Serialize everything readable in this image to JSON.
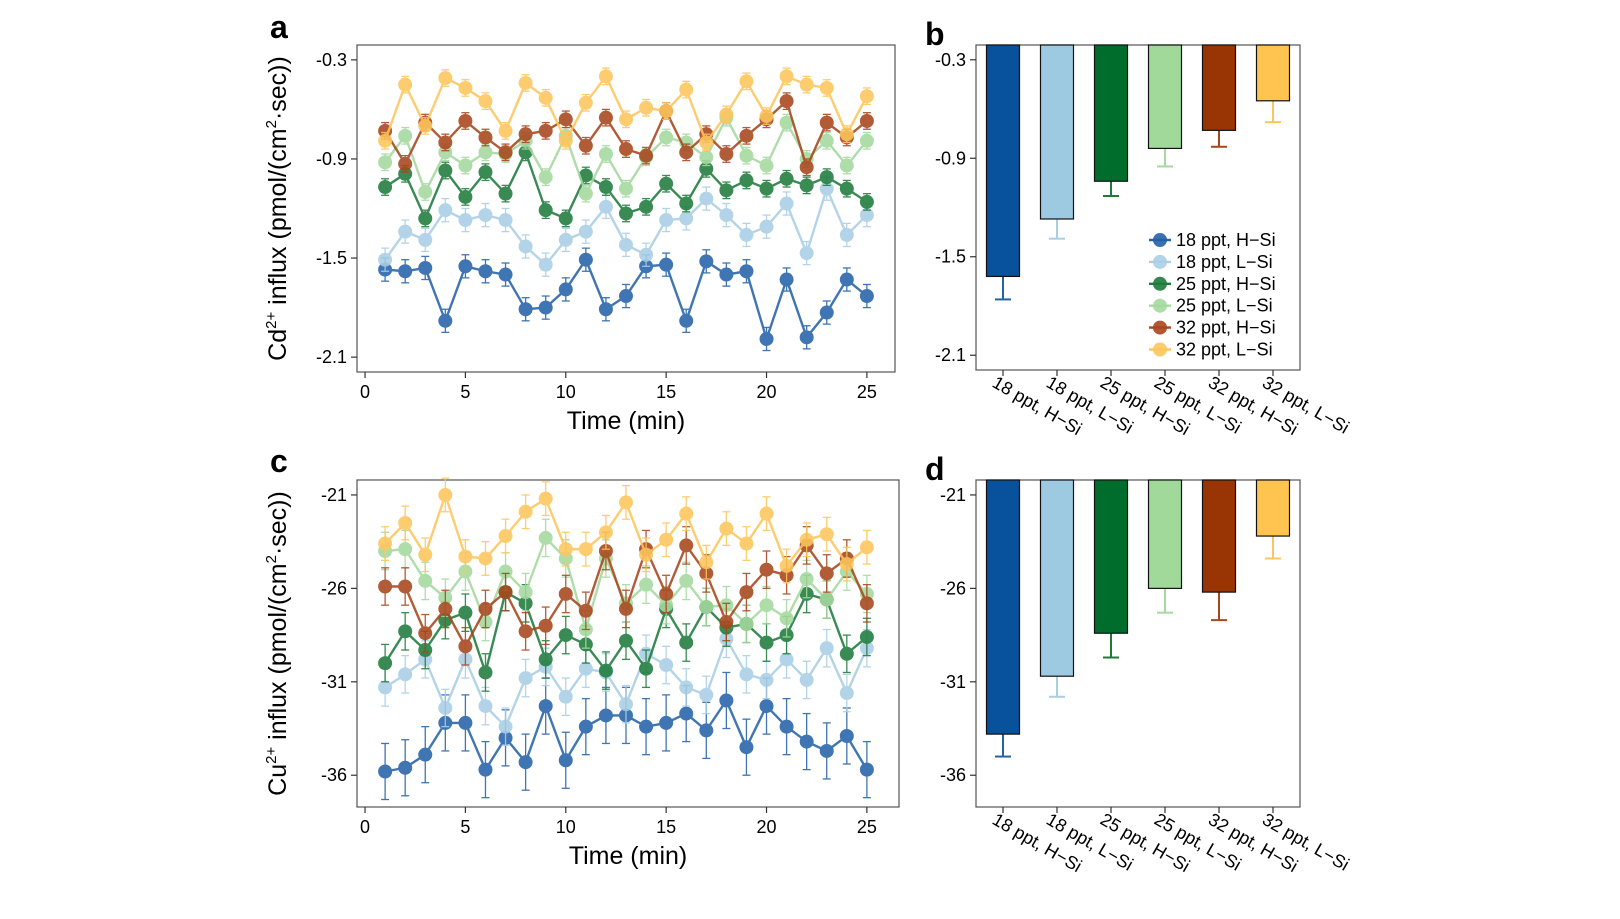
{
  "colors": {
    "18 ppt, H-Si": "#2562a8",
    "18 ppt, L-Si": "#a9cfe5",
    "25 ppt, H-Si": "#1e7b3c",
    "25 ppt, L-Si": "#a5d99e",
    "32 ppt, H-Si": "#a8461c",
    "32 ppt, L-Si": "#fdc65c",
    "bar_fills": [
      "#08519c",
      "#9ecae1",
      "#006d2c",
      "#a1d99b",
      "#993404",
      "#fec44f"
    ]
  },
  "legend": {
    "placement": "bottom-right of panel b",
    "entries": [
      "18 ppt, H−Si",
      "18 ppt, L−Si",
      "25 ppt, H−Si",
      "25 ppt, L−Si",
      "32 ppt, H−Si",
      "32 ppt, L−Si"
    ]
  },
  "chart_data": [
    {
      "panel": "a",
      "type": "line",
      "xlabel": "Time (min)",
      "ylabel": {
        "ion": "Cd",
        "charge": "2+",
        "mid": " influx (pmol/(cm",
        "sup": "2",
        "end": "·sec))"
      },
      "xlim": [
        -0.4,
        26.4
      ],
      "ylim": [
        -2.19,
        -0.21
      ],
      "xticks": [
        0,
        5,
        10,
        15,
        20,
        25
      ],
      "yticks": [
        -0.3,
        -0.9,
        -1.5,
        -2.1
      ],
      "ytick_labels": [
        "-0.3",
        "-0.9",
        "-1.5",
        "-2.1"
      ],
      "x": [
        1,
        2,
        3,
        4,
        5,
        6,
        7,
        8,
        9,
        10,
        11,
        12,
        13,
        14,
        15,
        16,
        17,
        18,
        19,
        20,
        21,
        22,
        23,
        24,
        25
      ],
      "series": [
        {
          "name": "18 ppt, H-Si",
          "err": 0.07,
          "values": [
            -1.57,
            -1.58,
            -1.56,
            -1.88,
            -1.55,
            -1.58,
            -1.6,
            -1.81,
            -1.8,
            -1.69,
            -1.51,
            -1.81,
            -1.73,
            -1.55,
            -1.54,
            -1.88,
            -1.52,
            -1.6,
            -1.58,
            -1.99,
            -1.63,
            -1.98,
            -1.83,
            -1.63,
            -1.73
          ]
        },
        {
          "name": "18 ppt, L-Si",
          "err": 0.07,
          "values": [
            -1.51,
            -1.34,
            -1.39,
            -1.21,
            -1.27,
            -1.24,
            -1.27,
            -1.43,
            -1.54,
            -1.39,
            -1.34,
            -1.19,
            -1.42,
            -1.48,
            -1.27,
            -1.26,
            -1.14,
            -1.24,
            -1.36,
            -1.31,
            -1.17,
            -1.47,
            -1.08,
            -1.36,
            -1.24
          ]
        },
        {
          "name": "25 ppt, H-Si",
          "err": 0.05,
          "values": [
            -1.07,
            -0.99,
            -1.26,
            -0.97,
            -1.13,
            -0.98,
            -1.11,
            -0.86,
            -1.21,
            -1.26,
            -1.0,
            -1.07,
            -1.23,
            -1.19,
            -1.05,
            -1.17,
            -0.96,
            -1.09,
            -1.03,
            -1.08,
            -1.02,
            -1.06,
            -1.01,
            -1.08,
            -1.16
          ]
        },
        {
          "name": "25 ppt, L-Si",
          "err": 0.05,
          "values": [
            -0.92,
            -0.76,
            -1.1,
            -0.86,
            -0.94,
            -0.86,
            -0.87,
            -0.79,
            -1.01,
            -0.76,
            -1.11,
            -0.87,
            -1.08,
            -0.89,
            -0.77,
            -0.8,
            -0.89,
            -0.65,
            -0.88,
            -0.94,
            -0.68,
            -0.9,
            -0.79,
            -0.94,
            -0.79
          ]
        },
        {
          "name": "32 ppt, H-Si",
          "err": 0.05,
          "values": [
            -0.73,
            -0.93,
            -0.68,
            -0.8,
            -0.67,
            -0.77,
            -0.86,
            -0.75,
            -0.73,
            -0.66,
            -0.82,
            -0.65,
            -0.84,
            -0.88,
            -0.61,
            -0.86,
            -0.75,
            -0.87,
            -0.76,
            -0.66,
            -0.55,
            -0.95,
            -0.68,
            -0.77,
            -0.67
          ]
        },
        {
          "name": "32 ppt, L-Si",
          "err": 0.05,
          "values": [
            -0.79,
            -0.45,
            -0.7,
            -0.41,
            -0.47,
            -0.55,
            -0.73,
            -0.44,
            -0.53,
            -0.79,
            -0.56,
            -0.4,
            -0.66,
            -0.59,
            -0.61,
            -0.48,
            -0.8,
            -0.63,
            -0.43,
            -0.64,
            -0.4,
            -0.45,
            -0.47,
            -0.75,
            -0.52
          ]
        }
      ]
    },
    {
      "panel": "b",
      "type": "bar",
      "categories": [
        "18 ppt, H−Si",
        "18 ppt, L−Si",
        "25 ppt, H−Si",
        "25 ppt, L−Si",
        "32 ppt, H−Si",
        "32 ppt, L−Si"
      ],
      "values": [
        -1.62,
        -1.27,
        -1.04,
        -0.84,
        -0.73,
        -0.55
      ],
      "errors": [
        0.14,
        0.12,
        0.09,
        0.11,
        0.1,
        0.13
      ],
      "ylim": [
        -2.19,
        -0.21
      ],
      "yticks": [
        -0.3,
        -0.9,
        -1.5,
        -2.1
      ],
      "ytick_labels": [
        "-0.3",
        "-0.9",
        "-1.5",
        "-2.1"
      ]
    },
    {
      "panel": "c",
      "type": "line",
      "xlabel": "Time (min)",
      "ylabel": {
        "ion": "Cu",
        "charge": "2+",
        "mid": " influx (pmol/(cm",
        "sup": "2",
        "end": "·sec))"
      },
      "xlim": [
        -0.4,
        26.6
      ],
      "ylim": [
        -37.7,
        -20.2
      ],
      "xticks": [
        0,
        5,
        10,
        15,
        20,
        25
      ],
      "yticks": [
        -21,
        -26,
        -31,
        -36
      ],
      "ytick_labels": [
        "-21",
        "-26",
        "-31",
        "-36"
      ],
      "x": [
        1,
        2,
        3,
        4,
        5,
        6,
        7,
        8,
        9,
        10,
        11,
        12,
        13,
        14,
        15,
        16,
        17,
        18,
        19,
        20,
        21,
        22,
        23,
        24,
        25
      ],
      "series": [
        {
          "name": "18 ppt, H-Si",
          "err": 1.5,
          "values": [
            -35.8,
            -35.6,
            -34.9,
            -33.2,
            -33.2,
            -35.7,
            -34.0,
            -35.3,
            -32.3,
            -35.2,
            -33.4,
            -32.8,
            -32.8,
            -33.4,
            -33.2,
            -32.7,
            -33.6,
            -32.0,
            -34.5,
            -32.3,
            -33.4,
            -34.2,
            -34.7,
            -33.9,
            -35.7
          ]
        },
        {
          "name": "18 ppt, L-Si",
          "err": 1.0,
          "values": [
            -31.3,
            -30.6,
            -29.8,
            -32.4,
            -29.8,
            -32.3,
            -33.4,
            -30.8,
            -30.2,
            -31.8,
            -30.3,
            -30.5,
            -32.2,
            -29.5,
            -30.1,
            -31.3,
            -31.7,
            -28.7,
            -30.6,
            -30.9,
            -29.8,
            -30.9,
            -29.2,
            -31.6,
            -29.2
          ]
        },
        {
          "name": "25 ppt, H-Si",
          "err": 1.0,
          "values": [
            -30.0,
            -28.3,
            -29.3,
            -27.7,
            -27.3,
            -30.5,
            -26.2,
            -26.8,
            -29.8,
            -28.5,
            -29.0,
            -30.4,
            -28.8,
            -30.3,
            -27.1,
            -28.9,
            -27.0,
            -28.1,
            -27.9,
            -28.9,
            -28.5,
            -26.3,
            -26.6,
            -29.5,
            -28.6
          ]
        },
        {
          "name": "25 ppt, L-Si",
          "err": 1.0,
          "values": [
            -24.0,
            -23.9,
            -25.6,
            -26.5,
            -25.1,
            -27.8,
            -25.1,
            -26.2,
            -23.3,
            -24.4,
            -28.2,
            -24.4,
            -26.8,
            -25.8,
            -26.9,
            -25.6,
            -27.0,
            -26.9,
            -27.9,
            -26.9,
            -27.6,
            -25.5,
            -26.6,
            -25.1,
            -26.3
          ]
        },
        {
          "name": "32 ppt, H-Si",
          "err": 1.0,
          "values": [
            -25.9,
            -25.9,
            -28.4,
            -27.1,
            -29.1,
            -27.1,
            -26.2,
            -28.3,
            -28.0,
            -26.3,
            -27.2,
            -24.0,
            -27.1,
            -23.9,
            -26.3,
            -23.7,
            -25.2,
            -27.8,
            -26.2,
            -25.0,
            -25.3,
            -23.7,
            -25.2,
            -24.4,
            -26.8
          ]
        },
        {
          "name": "32 ppt, L-Si",
          "err": 0.9,
          "values": [
            -23.6,
            -22.5,
            -24.2,
            -21.0,
            -24.3,
            -24.4,
            -23.2,
            -21.9,
            -21.2,
            -23.9,
            -23.9,
            -23.0,
            -21.4,
            -24.2,
            -23.4,
            -22.0,
            -24.6,
            -22.8,
            -23.6,
            -22.0,
            -24.8,
            -23.4,
            -23.1,
            -24.7,
            -23.8
          ]
        }
      ]
    },
    {
      "panel": "d",
      "type": "bar",
      "categories": [
        "18 ppt, H−Si",
        "18 ppt, L−Si",
        "25 ppt, H−Si",
        "25 ppt, L−Si",
        "32 ppt, H−Si",
        "32 ppt, L−Si"
      ],
      "values": [
        -33.8,
        -30.7,
        -28.4,
        -26.0,
        -26.2,
        -23.2
      ],
      "errors": [
        1.2,
        1.1,
        1.3,
        1.3,
        1.5,
        1.2
      ],
      "ylim": [
        -37.7,
        -20.2
      ],
      "yticks": [
        -21,
        -26,
        -31,
        -36
      ],
      "ytick_labels": [
        "-21",
        "-26",
        "-31",
        "-36"
      ]
    }
  ]
}
